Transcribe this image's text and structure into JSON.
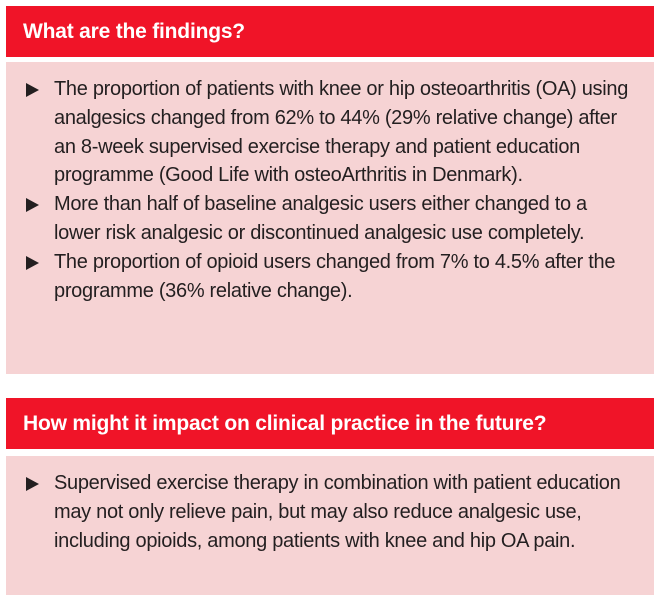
{
  "sections": [
    {
      "title": "What are the findings?",
      "bullets": [
        "The proportion of patients with knee or hip osteoarthritis (OA) using analgesics changed from 62% to 44% (29% relative change) after an 8-week supervised exercise therapy and patient education programme (Good Life with osteoArthritis in Denmark).",
        "More than half of baseline analgesic users either changed to a lower risk analgesic or discontinued analgesic use completely.",
        "The proportion of opioid users changed from 7% to 4.5% after the programme (36% relative change)."
      ]
    },
    {
      "title": "How might it impact on clinical practice in the future?",
      "bullets": [
        "Supervised exercise therapy in combination with patient education may not only relieve pain, but may also reduce analgesic use, including opioids, among patients with knee and hip OA pain."
      ]
    }
  ],
  "colors": {
    "header": "#f01428",
    "body": "#f6d3d4",
    "text": "#231f20"
  }
}
